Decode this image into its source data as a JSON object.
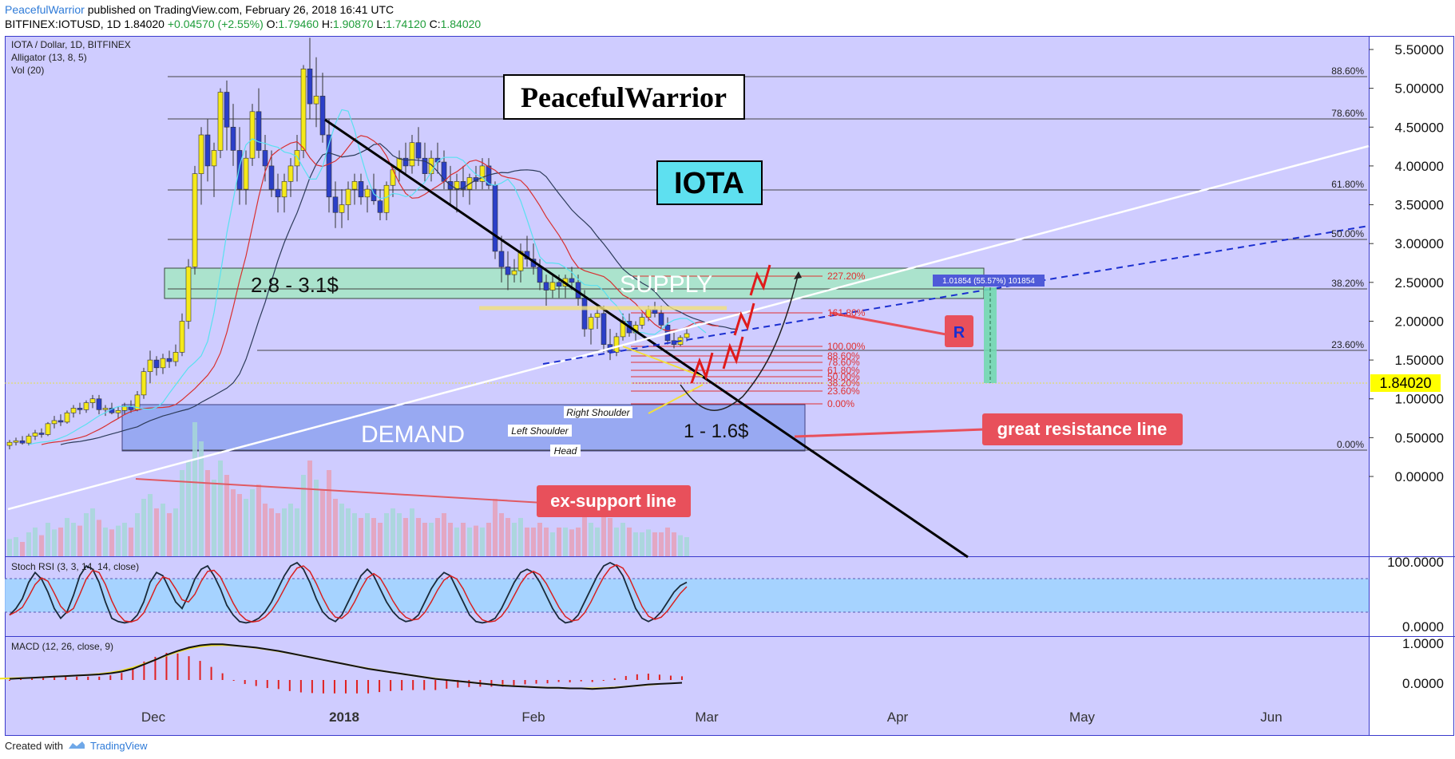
{
  "header": {
    "author": "PeacefulWarrior",
    "published": "published on TradingView.com, February 26, 2018 16:41 UTC",
    "symbol": "BITFINEX:IOTUSD, 1D",
    "last": "1.84020",
    "change": "+0.04570 (+2.55%)",
    "o_label": "O:",
    "o": "1.79460",
    "h_label": "H:",
    "h": "1.90870",
    "l_label": "L:",
    "l": "1.74120",
    "c_label": "C:",
    "c": "1.84020"
  },
  "legend": {
    "title": "IOTA / Dollar, 1D, BITFINEX",
    "alligator": "Alligator (13, 8, 5)",
    "vol": "Vol (20)",
    "stochrsi": "Stoch RSI (3, 3, 14, 14, close)",
    "macd": "MACD (12, 26, close, 9)"
  },
  "footer": {
    "created_with": "Created with",
    "brand": "TradingView"
  },
  "colors": {
    "panel_bg": "#cfccff",
    "up": "#f5e91a",
    "down": "#2b3fc8",
    "supply": "#a8e6c8",
    "demand": "#8fa3f0",
    "callout": "#e8505b",
    "price_tag": "#ffff00",
    "fib_red": "#e03030"
  },
  "chart_data": [
    {
      "type": "candlestick",
      "title": "IOTA / Dollar, 1D, BITFINEX",
      "x_tick_labels": [
        "Dec",
        "2018",
        "Feb",
        "Mar",
        "Apr",
        "May",
        "Jun"
      ],
      "y_tick_labels": [
        "5.50000",
        "5.00000",
        "4.50000",
        "4.00000",
        "3.50000",
        "3.00000",
        "2.50000",
        "2.00000",
        "1.50000",
        "1.00000",
        "0.50000",
        "0.00000"
      ],
      "ylim": [
        0,
        5.7
      ],
      "last_price": "1.84020",
      "ohlc": [
        [
          0.4,
          0.47,
          0.35,
          0.44
        ],
        [
          0.44,
          0.5,
          0.4,
          0.46
        ],
        [
          0.46,
          0.52,
          0.41,
          0.43
        ],
        [
          0.43,
          0.55,
          0.4,
          0.52
        ],
        [
          0.52,
          0.6,
          0.47,
          0.56
        ],
        [
          0.56,
          0.62,
          0.5,
          0.54
        ],
        [
          0.54,
          0.7,
          0.52,
          0.68
        ],
        [
          0.68,
          0.78,
          0.62,
          0.72
        ],
        [
          0.72,
          0.8,
          0.65,
          0.7
        ],
        [
          0.7,
          0.85,
          0.68,
          0.82
        ],
        [
          0.82,
          0.92,
          0.76,
          0.88
        ],
        [
          0.88,
          0.95,
          0.8,
          0.86
        ],
        [
          0.86,
          0.98,
          0.82,
          0.95
        ],
        [
          0.95,
          1.05,
          0.88,
          1.0
        ],
        [
          1.0,
          1.05,
          0.8,
          0.86
        ],
        [
          0.86,
          0.92,
          0.78,
          0.88
        ],
        [
          0.88,
          0.95,
          0.8,
          0.82
        ],
        [
          0.82,
          0.9,
          0.75,
          0.85
        ],
        [
          0.85,
          0.95,
          0.8,
          0.9
        ],
        [
          0.9,
          0.98,
          0.82,
          0.86
        ],
        [
          0.86,
          1.1,
          0.84,
          1.05
        ],
        [
          1.05,
          1.4,
          1.0,
          1.35
        ],
        [
          1.35,
          1.62,
          1.2,
          1.5
        ],
        [
          1.5,
          1.55,
          1.3,
          1.4
        ],
        [
          1.4,
          1.58,
          1.32,
          1.52
        ],
        [
          1.52,
          1.62,
          1.4,
          1.48
        ],
        [
          1.48,
          1.7,
          1.42,
          1.6
        ],
        [
          1.6,
          2.1,
          1.55,
          2.0
        ],
        [
          2.0,
          2.8,
          1.9,
          2.7
        ],
        [
          2.7,
          4.0,
          2.6,
          3.9
        ],
        [
          3.9,
          4.5,
          3.5,
          4.4
        ],
        [
          4.4,
          4.6,
          3.8,
          4.0
        ],
        [
          4.0,
          4.3,
          3.6,
          4.2
        ],
        [
          4.2,
          5.0,
          4.1,
          4.95
        ],
        [
          4.95,
          5.1,
          4.2,
          4.5
        ],
        [
          4.5,
          4.8,
          4.0,
          4.2
        ],
        [
          4.2,
          4.5,
          3.5,
          3.7
        ],
        [
          3.7,
          4.2,
          3.5,
          4.1
        ],
        [
          4.1,
          4.8,
          4.0,
          4.7
        ],
        [
          4.7,
          5.0,
          4.1,
          4.2
        ],
        [
          4.2,
          4.4,
          3.8,
          4.0
        ],
        [
          4.0,
          4.2,
          3.6,
          3.7
        ],
        [
          3.7,
          3.9,
          3.4,
          3.6
        ],
        [
          3.6,
          3.9,
          3.4,
          3.8
        ],
        [
          3.8,
          4.1,
          3.6,
          4.0
        ],
        [
          4.0,
          4.4,
          3.8,
          4.2
        ],
        [
          4.2,
          5.3,
          4.1,
          5.25
        ],
        [
          5.25,
          5.65,
          4.6,
          4.8
        ],
        [
          4.8,
          5.4,
          4.5,
          4.9
        ],
        [
          4.9,
          5.2,
          4.3,
          4.4
        ],
        [
          4.4,
          4.6,
          3.4,
          3.6
        ],
        [
          3.6,
          3.8,
          3.2,
          3.4
        ],
        [
          3.4,
          3.7,
          3.2,
          3.5
        ],
        [
          3.5,
          3.8,
          3.3,
          3.7
        ],
        [
          3.7,
          3.9,
          3.5,
          3.8
        ],
        [
          3.8,
          3.9,
          3.5,
          3.6
        ],
        [
          3.6,
          3.75,
          3.4,
          3.7
        ],
        [
          3.7,
          3.9,
          3.5,
          3.55
        ],
        [
          3.55,
          3.7,
          3.3,
          3.4
        ],
        [
          3.4,
          3.8,
          3.3,
          3.75
        ],
        [
          3.75,
          4.0,
          3.6,
          3.95
        ],
        [
          3.95,
          4.2,
          3.8,
          4.1
        ],
        [
          4.1,
          4.3,
          3.9,
          4.0
        ],
        [
          4.0,
          4.4,
          3.9,
          4.3
        ],
        [
          4.3,
          4.5,
          4.0,
          4.1
        ],
        [
          4.1,
          4.3,
          3.8,
          3.9
        ],
        [
          3.9,
          4.2,
          3.8,
          4.1
        ],
        [
          4.1,
          4.3,
          3.9,
          4.05
        ],
        [
          4.05,
          4.2,
          3.7,
          3.8
        ],
        [
          3.8,
          4.0,
          3.5,
          3.7
        ],
        [
          3.7,
          3.9,
          3.4,
          3.8
        ],
        [
          3.8,
          4.0,
          3.6,
          3.7
        ],
        [
          3.7,
          3.9,
          3.5,
          3.85
        ],
        [
          3.85,
          4.0,
          3.7,
          3.8
        ],
        [
          3.8,
          4.1,
          3.7,
          4.0
        ],
        [
          4.0,
          4.1,
          3.7,
          3.75
        ],
        [
          3.75,
          3.8,
          2.8,
          2.9
        ],
        [
          2.9,
          3.1,
          2.5,
          2.7
        ],
        [
          2.7,
          2.9,
          2.4,
          2.6
        ],
        [
          2.6,
          2.8,
          2.5,
          2.65
        ],
        [
          2.65,
          3.0,
          2.5,
          2.9
        ],
        [
          2.9,
          3.1,
          2.7,
          2.8
        ],
        [
          2.8,
          3.0,
          2.6,
          2.7
        ],
        [
          2.7,
          2.8,
          2.4,
          2.5
        ],
        [
          2.5,
          2.6,
          2.2,
          2.4
        ],
        [
          2.4,
          2.6,
          2.3,
          2.5
        ],
        [
          2.5,
          2.6,
          2.3,
          2.45
        ],
        [
          2.45,
          2.6,
          2.3,
          2.55
        ],
        [
          2.55,
          2.7,
          2.4,
          2.5
        ],
        [
          2.5,
          2.6,
          2.2,
          2.3
        ],
        [
          2.3,
          2.4,
          1.8,
          1.9
        ],
        [
          1.9,
          2.1,
          1.7,
          2.05
        ],
        [
          2.05,
          2.2,
          1.9,
          2.1
        ],
        [
          2.1,
          2.2,
          1.6,
          1.7
        ],
        [
          1.7,
          1.9,
          1.5,
          1.6
        ],
        [
          1.6,
          1.85,
          1.55,
          1.8
        ],
        [
          1.8,
          2.1,
          1.75,
          2.0
        ],
        [
          2.0,
          2.1,
          1.8,
          1.85
        ],
        [
          1.85,
          2.0,
          1.75,
          1.95
        ],
        [
          1.95,
          2.1,
          1.9,
          2.05
        ],
        [
          2.05,
          2.2,
          2.0,
          2.15
        ],
        [
          2.15,
          2.25,
          2.05,
          2.1
        ],
        [
          2.1,
          2.2,
          1.9,
          1.95
        ],
        [
          1.95,
          2.05,
          1.7,
          1.75
        ],
        [
          1.75,
          1.85,
          1.65,
          1.7
        ],
        [
          1.7,
          1.82,
          1.68,
          1.79
        ],
        [
          1.79,
          1.91,
          1.74,
          1.84
        ]
      ],
      "volume": [
        0.18,
        0.2,
        0.15,
        0.25,
        0.3,
        0.22,
        0.35,
        0.28,
        0.3,
        0.4,
        0.35,
        0.32,
        0.45,
        0.5,
        0.38,
        0.3,
        0.28,
        0.32,
        0.35,
        0.3,
        0.45,
        0.6,
        0.65,
        0.5,
        0.55,
        0.45,
        0.5,
        0.9,
        1.0,
        1.4,
        1.2,
        0.9,
        0.8,
        1.0,
        0.85,
        0.7,
        0.65,
        0.6,
        0.7,
        0.75,
        0.55,
        0.5,
        0.45,
        0.5,
        0.55,
        0.5,
        0.85,
        1.0,
        0.8,
        0.7,
        0.9,
        0.6,
        0.55,
        0.5,
        0.45,
        0.4,
        0.45,
        0.4,
        0.35,
        0.45,
        0.5,
        0.45,
        0.4,
        0.5,
        0.4,
        0.35,
        0.35,
        0.4,
        0.45,
        0.35,
        0.3,
        0.35,
        0.3,
        0.32,
        0.3,
        0.35,
        0.6,
        0.45,
        0.4,
        0.35,
        0.4,
        0.3,
        0.3,
        0.35,
        0.3,
        0.25,
        0.3,
        0.3,
        0.28,
        0.3,
        0.55,
        0.35,
        0.3,
        0.45,
        0.4,
        0.3,
        0.35,
        0.3,
        0.25,
        0.25,
        0.28,
        0.25,
        0.25,
        0.3,
        0.25,
        0.22,
        0.2
      ],
      "stoch_rsi": [
        20,
        30,
        45,
        70,
        85,
        75,
        55,
        30,
        15,
        25,
        50,
        80,
        95,
        90,
        70,
        40,
        15,
        10,
        8,
        10,
        20,
        40,
        70,
        85,
        80,
        60,
        40,
        30,
        50,
        75,
        90,
        95,
        80,
        60,
        35,
        20,
        10,
        8,
        10,
        15,
        25,
        40,
        60,
        80,
        95,
        100,
        90,
        70,
        45,
        25,
        15,
        10,
        20,
        40,
        60,
        80,
        90,
        80,
        60,
        40,
        25,
        15,
        10,
        12,
        20,
        40,
        60,
        75,
        85,
        80,
        60,
        40,
        20,
        10,
        8,
        10,
        15,
        30,
        50,
        70,
        85,
        90,
        85,
        70,
        50,
        30,
        15,
        8,
        10,
        20,
        40,
        60,
        80,
        95,
        100,
        95,
        80,
        55,
        30,
        15,
        10,
        15,
        25,
        40,
        55,
        65,
        70
      ],
      "macd": [
        0.02,
        0.03,
        0.04,
        0.05,
        0.06,
        0.07,
        0.08,
        0.09,
        0.1,
        0.12,
        0.15,
        0.2,
        0.28,
        0.36,
        0.45,
        0.52,
        0.58,
        0.62,
        0.64,
        0.64,
        0.62,
        0.6,
        0.58,
        0.55,
        0.52,
        0.48,
        0.44,
        0.4,
        0.36,
        0.32,
        0.28,
        0.24,
        0.2,
        0.17,
        0.14,
        0.11,
        0.08,
        0.05,
        0.02,
        0.0,
        -0.02,
        -0.04,
        -0.06,
        -0.08,
        -0.1,
        -0.11,
        -0.12,
        -0.13,
        -0.14,
        -0.14,
        -0.15,
        -0.15,
        -0.16,
        -0.15,
        -0.14,
        -0.12,
        -0.1,
        -0.08,
        -0.07,
        -0.06,
        -0.05
      ],
      "fib_right_labels": [
        "88.60%",
        "78.60%",
        "61.80%",
        "50.00%",
        "38.20%",
        "23.60%",
        "0.00%"
      ],
      "fib_small_labels": [
        "227.20%",
        "161.80%",
        "100.00%",
        "88.60%",
        "78.60%",
        "61.80%",
        "50.00%",
        "38.20%",
        "23.60%",
        "0.00%"
      ],
      "annotations": {
        "watermark": "PeacefulWarrior",
        "coin": "IOTA",
        "supply_range": "2.8 - 3.1$",
        "supply": "SUPPLY",
        "demand": "DEMAND",
        "demand_range": "1 - 1.6$",
        "left_shoulder": "Left Shoulder",
        "head": "Head",
        "right_shoulder": "Right Shoulder",
        "resistance_marker": "R",
        "great_resistance": "great resistance line",
        "ex_support": "ex-support line",
        "measure_label": "1.01854 (55.57%) 101854"
      },
      "stoch_axis": [
        "100.0000",
        "0.0000"
      ],
      "macd_axis": [
        "1.0000",
        "0.0000"
      ]
    }
  ]
}
